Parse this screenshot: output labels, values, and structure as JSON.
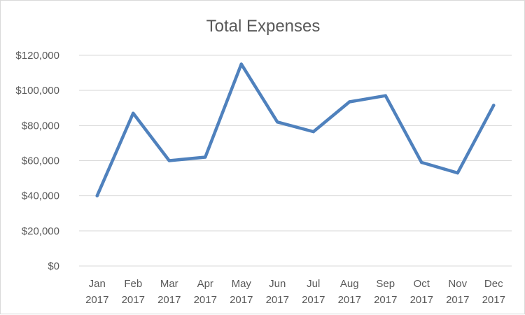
{
  "chart_data": {
    "type": "line",
    "title": "Total Expenses",
    "xlabel": "",
    "ylabel": "",
    "categories": [
      [
        "Jan",
        "2017"
      ],
      [
        "Feb",
        "2017"
      ],
      [
        "Mar",
        "2017"
      ],
      [
        "Apr",
        "2017"
      ],
      [
        "May",
        "2017"
      ],
      [
        "Jun",
        "2017"
      ],
      [
        "Jul",
        "2017"
      ],
      [
        "Aug",
        "2017"
      ],
      [
        "Sep",
        "2017"
      ],
      [
        "Oct",
        "2017"
      ],
      [
        "Nov",
        "2017"
      ],
      [
        "Dec",
        "2017"
      ]
    ],
    "series": [
      {
        "color": "#4f81bd",
        "values": [
          40000,
          87000,
          60000,
          62000,
          115000,
          82000,
          76500,
          93500,
          97000,
          59000,
          53000,
          91500
        ]
      }
    ],
    "ylim": [
      0,
      120000
    ],
    "yticks": [
      0,
      20000,
      40000,
      60000,
      80000,
      100000,
      120000
    ],
    "ytick_labels": [
      "$0",
      "$20,000",
      "$40,000",
      "$60,000",
      "$80,000",
      "$100,000",
      "$120,000"
    ],
    "grid": true,
    "legend": "none"
  }
}
